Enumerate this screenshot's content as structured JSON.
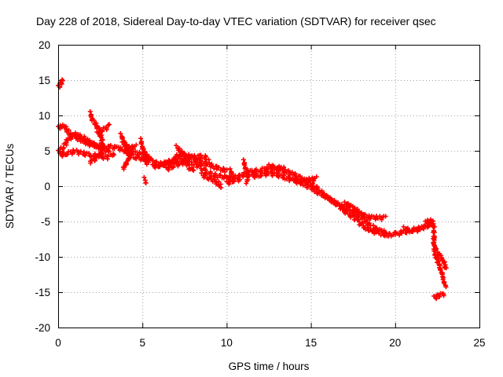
{
  "chart_data": {
    "type": "scatter",
    "title": "Day 228 of 2018, Sidereal Day-to-day VTEC variation (SDTVAR) for receiver qsec",
    "xlabel": "GPS time / hours",
    "ylabel": "SDTVAR / TECUs",
    "xlim": [
      0,
      25
    ],
    "ylim": [
      -20,
      20
    ],
    "xticks": [
      "0",
      "5",
      "10",
      "15",
      "20",
      "25"
    ],
    "yticks": [
      "20",
      "15",
      "10",
      "5",
      "0",
      "-5",
      "-10",
      "-15",
      "-20"
    ],
    "grid": true,
    "marker": "plus",
    "series": [
      {
        "name": "SDTVAR",
        "color": "#ff0000",
        "tracks": [
          [
            [
              0.0,
              14.0
            ],
            [
              0.2,
              14.6
            ],
            [
              0.3,
              15.0
            ]
          ],
          [
            [
              0.0,
              8.2
            ],
            [
              0.2,
              8.6
            ],
            [
              0.4,
              8.3
            ],
            [
              0.6,
              7.7
            ],
            [
              0.8,
              7.2
            ],
            [
              1.0,
              7.0
            ],
            [
              1.3,
              6.6
            ],
            [
              1.6,
              6.2
            ],
            [
              2.0,
              5.8
            ],
            [
              2.5,
              5.5
            ],
            [
              3.0,
              5.6
            ],
            [
              3.5,
              5.4
            ],
            [
              4.0,
              5.0
            ],
            [
              4.5,
              4.7
            ],
            [
              5.0,
              4.5
            ],
            [
              5.5,
              4.0
            ]
          ],
          [
            [
              0.0,
              4.8
            ],
            [
              0.3,
              5.5
            ],
            [
              0.6,
              6.6
            ],
            [
              1.0,
              7.3
            ],
            [
              1.4,
              7.0
            ],
            [
              1.8,
              6.3
            ],
            [
              2.2,
              5.8
            ],
            [
              2.6,
              5.4
            ],
            [
              3.0,
              4.8
            ],
            [
              3.3,
              4.3
            ]
          ],
          [
            [
              0.1,
              4.4
            ],
            [
              0.5,
              4.6
            ],
            [
              1.0,
              4.9
            ],
            [
              1.5,
              4.6
            ],
            [
              2.0,
              4.4
            ],
            [
              2.5,
              4.2
            ],
            [
              3.0,
              4.0
            ]
          ],
          [
            [
              1.9,
              10.3
            ],
            [
              2.0,
              9.6
            ],
            [
              2.2,
              8.8
            ],
            [
              2.4,
              8.0
            ],
            [
              2.5,
              7.3
            ],
            [
              2.6,
              6.5
            ],
            [
              2.6,
              5.6
            ],
            [
              2.6,
              4.8
            ],
            [
              2.3,
              4.0
            ],
            [
              1.9,
              3.4
            ]
          ],
          [
            [
              2.3,
              7.4
            ],
            [
              2.6,
              7.9
            ],
            [
              2.9,
              8.3
            ],
            [
              3.0,
              8.5
            ]
          ],
          [
            [
              3.7,
              7.2
            ],
            [
              3.9,
              6.5
            ],
            [
              4.0,
              5.7
            ],
            [
              4.2,
              4.9
            ],
            [
              4.2,
              4.0
            ],
            [
              4.0,
              3.0
            ],
            [
              3.9,
              2.5
            ]
          ],
          [
            [
              3.8,
              6.0
            ],
            [
              4.1,
              5.6
            ],
            [
              4.3,
              5.4
            ],
            [
              4.6,
              5.6
            ]
          ],
          [
            [
              4.9,
              6.5
            ],
            [
              5.0,
              5.6
            ],
            [
              5.1,
              4.8
            ],
            [
              5.2,
              4.0
            ],
            [
              5.3,
              3.3
            ]
          ],
          [
            [
              4.1,
              4.4
            ],
            [
              4.6,
              4.1
            ],
            [
              5.2,
              3.7
            ],
            [
              5.5,
              3.6
            ]
          ],
          [
            [
              5.1,
              1.0
            ],
            [
              5.2,
              0.6
            ]
          ],
          [
            [
              5.6,
              2.8
            ],
            [
              6.0,
              2.9
            ],
            [
              6.5,
              3.3
            ],
            [
              7.0,
              3.6
            ],
            [
              7.5,
              3.9
            ],
            [
              8.0,
              4.1
            ],
            [
              8.5,
              4.2
            ],
            [
              8.9,
              4.0
            ]
          ],
          [
            [
              5.6,
              3.4
            ],
            [
              6.2,
              3.1
            ],
            [
              6.8,
              3.6
            ],
            [
              7.2,
              4.6
            ],
            [
              7.6,
              4.4
            ],
            [
              8.0,
              3.9
            ],
            [
              8.5,
              3.4
            ],
            [
              9.0,
              3.0
            ],
            [
              9.5,
              2.5
            ],
            [
              10.0,
              2.2
            ]
          ],
          [
            [
              7.0,
              5.5
            ],
            [
              7.3,
              5.0
            ],
            [
              7.5,
              4.3
            ],
            [
              7.6,
              3.4
            ],
            [
              7.8,
              2.6
            ],
            [
              8.0,
              2.2
            ]
          ],
          [
            [
              6.4,
              2.4
            ],
            [
              6.8,
              2.8
            ],
            [
              7.2,
              3.2
            ],
            [
              7.6,
              3.4
            ],
            [
              8.0,
              3.2
            ],
            [
              8.4,
              2.8
            ],
            [
              8.8,
              2.0
            ],
            [
              9.2,
              1.6
            ],
            [
              9.6,
              1.4
            ],
            [
              10.0,
              1.2
            ],
            [
              10.4,
              1.2
            ],
            [
              10.8,
              1.4
            ],
            [
              11.2,
              1.8
            ],
            [
              11.6,
              2.2
            ]
          ],
          [
            [
              8.5,
              1.6
            ],
            [
              8.9,
              1.2
            ],
            [
              9.2,
              0.8
            ],
            [
              9.5,
              0.4
            ],
            [
              9.7,
              0.0
            ]
          ],
          [
            [
              10.0,
              0.4
            ],
            [
              10.4,
              0.8
            ],
            [
              10.8,
              1.0
            ]
          ],
          [
            [
              10.2,
              2.2
            ],
            [
              10.4,
              1.4
            ]
          ],
          [
            [
              11.0,
              3.5
            ],
            [
              11.1,
              2.8
            ],
            [
              11.2,
              2.0
            ],
            [
              11.3,
              1.2
            ],
            [
              11.2,
              0.6
            ]
          ],
          [
            [
              11.5,
              2.0
            ],
            [
              12.0,
              2.3
            ],
            [
              12.5,
              2.5
            ],
            [
              13.0,
              2.4
            ],
            [
              13.5,
              2.1
            ],
            [
              14.0,
              1.6
            ],
            [
              14.5,
              1.0
            ],
            [
              15.0,
              0.4
            ],
            [
              15.4,
              -0.4
            ],
            [
              15.8,
              -1.2
            ],
            [
              16.2,
              -2.0
            ],
            [
              16.6,
              -2.8
            ],
            [
              17.0,
              -3.5
            ],
            [
              17.4,
              -4.2
            ],
            [
              17.8,
              -5.0
            ],
            [
              18.2,
              -5.8
            ],
            [
              18.6,
              -6.3
            ],
            [
              19.0,
              -6.6
            ],
            [
              19.5,
              -6.9
            ],
            [
              20.0,
              -6.8
            ],
            [
              20.5,
              -6.5
            ],
            [
              21.0,
              -6.2
            ],
            [
              21.5,
              -6.0
            ],
            [
              22.0,
              -5.5
            ],
            [
              22.2,
              -5.0
            ]
          ],
          [
            [
              11.5,
              1.4
            ],
            [
              12.0,
              1.6
            ],
            [
              12.5,
              1.8
            ],
            [
              13.0,
              1.6
            ],
            [
              13.5,
              1.2
            ],
            [
              14.0,
              0.8
            ],
            [
              14.5,
              0.4
            ],
            [
              15.0,
              -0.2
            ],
            [
              15.5,
              -1.0
            ],
            [
              16.0,
              -1.6
            ],
            [
              16.5,
              -2.4
            ],
            [
              17.0,
              -3.0
            ],
            [
              17.5,
              -3.6
            ],
            [
              17.8,
              -4.2
            ]
          ],
          [
            [
              14.0,
              0.6
            ],
            [
              14.5,
              0.8
            ],
            [
              15.0,
              0.9
            ],
            [
              15.3,
              1.1
            ]
          ],
          [
            [
              12.5,
              2.8
            ],
            [
              13.0,
              2.7
            ],
            [
              13.5,
              2.4
            ]
          ],
          [
            [
              17.0,
              -2.5
            ],
            [
              17.3,
              -2.7
            ],
            [
              17.7,
              -3.4
            ],
            [
              18.0,
              -4.2
            ],
            [
              18.2,
              -4.8
            ],
            [
              18.5,
              -5.6
            ]
          ],
          [
            [
              18.0,
              -4.0
            ],
            [
              18.5,
              -4.4
            ],
            [
              19.0,
              -4.5
            ],
            [
              19.4,
              -4.5
            ]
          ],
          [
            [
              18.7,
              -5.8
            ],
            [
              19.0,
              -6.2
            ],
            [
              19.5,
              -6.6
            ]
          ],
          [
            [
              20.5,
              -6.0
            ],
            [
              21.0,
              -6.3
            ],
            [
              21.5,
              -6.1
            ]
          ],
          [
            [
              21.8,
              -5.2
            ],
            [
              22.0,
              -4.8
            ],
            [
              22.2,
              -5.0
            ],
            [
              22.3,
              -6.0
            ],
            [
              22.3,
              -7.2
            ],
            [
              22.3,
              -8.5
            ],
            [
              22.4,
              -9.8
            ],
            [
              22.6,
              -11.0
            ],
            [
              22.7,
              -11.8
            ],
            [
              22.8,
              -12.6
            ],
            [
              22.9,
              -13.5
            ],
            [
              23.0,
              -14.2
            ]
          ],
          [
            [
              22.3,
              -8.5
            ],
            [
              22.6,
              -9.5
            ],
            [
              22.9,
              -10.8
            ],
            [
              23.0,
              -11.8
            ]
          ],
          [
            [
              22.3,
              -15.8
            ],
            [
              22.6,
              -15.5
            ],
            [
              22.9,
              -15.2
            ]
          ]
        ]
      }
    ]
  }
}
